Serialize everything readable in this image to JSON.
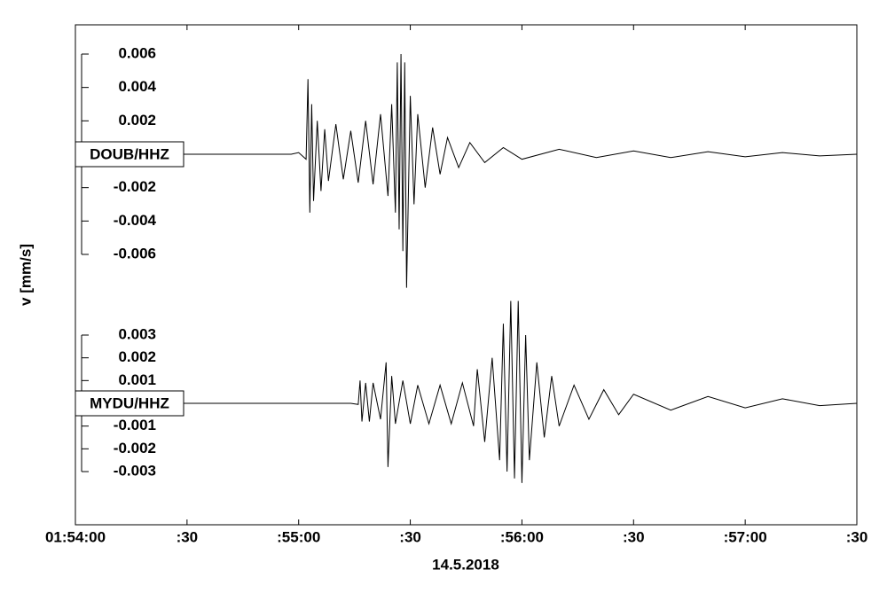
{
  "chart_data": {
    "type": "line",
    "ylabel": "v [mm/s]",
    "xlabel": "14.5.2018",
    "xlim": [
      0,
      210
    ],
    "xticks": [
      {
        "value": 0,
        "label": "01:54:00"
      },
      {
        "value": 30,
        "label": ":30"
      },
      {
        "value": 60,
        "label": ":55:00"
      },
      {
        "value": 90,
        "label": ":30"
      },
      {
        "value": 120,
        "label": ":56:00"
      },
      {
        "value": 150,
        "label": ":30"
      },
      {
        "value": 180,
        "label": ":57:00"
      },
      {
        "value": 210,
        "label": ":30"
      }
    ],
    "series": [
      {
        "name": "DOUB/HHZ",
        "color": "#000000",
        "ylim": [
          -0.006,
          0.006
        ],
        "yticks": [
          -0.006,
          -0.004,
          -0.002,
          0.002,
          0.004,
          0.006
        ],
        "x": [
          0,
          58,
          60,
          62,
          62.5,
          63,
          63.5,
          64,
          65,
          66,
          67,
          68,
          70,
          72,
          74,
          76,
          78,
          80,
          82,
          84,
          85,
          86,
          86.5,
          87,
          87.5,
          88,
          88.5,
          89,
          90,
          91,
          92,
          94,
          96,
          98,
          100,
          103,
          106,
          110,
          115,
          120,
          130,
          140,
          150,
          160,
          170,
          180,
          190,
          200,
          210
        ],
        "values": [
          0,
          0,
          0.0001,
          -0.0003,
          0.0045,
          -0.0035,
          0.003,
          -0.0028,
          0.002,
          -0.0022,
          0.0015,
          -0.0016,
          0.0018,
          -0.0015,
          0.0014,
          -0.0017,
          0.002,
          -0.0018,
          0.0024,
          -0.0025,
          0.003,
          -0.0035,
          0.0055,
          -0.0045,
          0.006,
          -0.0058,
          0.0055,
          -0.008,
          0.0035,
          -0.003,
          0.0024,
          -0.002,
          0.0016,
          -0.0012,
          0.001,
          -0.0008,
          0.0007,
          -0.0005,
          0.0004,
          -0.0003,
          0.0003,
          -0.0002,
          0.0002,
          -0.0002,
          0.00015,
          -0.00015,
          0.0001,
          -0.0001,
          0
        ]
      },
      {
        "name": "MYDU/HHZ",
        "color": "#000000",
        "ylim": [
          -0.003,
          0.003
        ],
        "yticks": [
          -0.003,
          -0.002,
          -0.001,
          0.001,
          0.002,
          0.003
        ],
        "x": [
          0,
          74,
          76,
          76.5,
          77,
          78,
          79,
          80,
          82,
          83.5,
          84,
          85,
          86,
          88,
          90,
          92,
          95,
          98,
          101,
          104,
          107,
          108,
          110,
          112,
          114,
          115,
          116,
          117,
          118,
          119,
          120,
          121,
          122,
          124,
          126,
          128,
          130,
          134,
          138,
          142,
          146,
          150,
          160,
          170,
          180,
          190,
          200,
          210
        ],
        "values": [
          0,
          0,
          -5e-05,
          0.001,
          -0.0008,
          0.0009,
          -0.0008,
          0.0009,
          -0.0007,
          0.0018,
          -0.0028,
          0.0012,
          -0.0009,
          0.001,
          -0.0009,
          0.0008,
          -0.0009,
          0.0008,
          -0.0009,
          0.0009,
          -0.001,
          0.0015,
          -0.0017,
          0.002,
          -0.0025,
          0.0035,
          -0.003,
          0.0045,
          -0.0033,
          0.0045,
          -0.0035,
          0.003,
          -0.0025,
          0.0018,
          -0.0015,
          0.0012,
          -0.001,
          0.0008,
          -0.0007,
          0.0006,
          -0.0005,
          0.0004,
          -0.0003,
          0.0003,
          -0.0002,
          0.0002,
          -0.0001,
          0
        ]
      }
    ]
  }
}
